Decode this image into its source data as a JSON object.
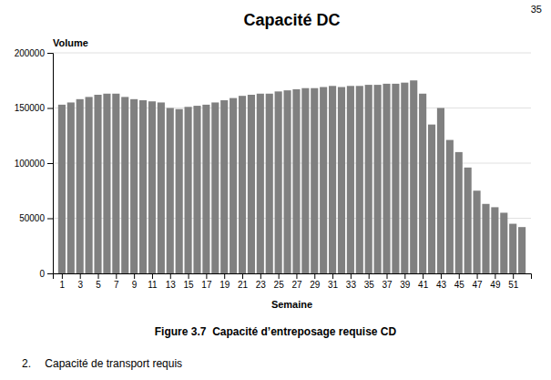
{
  "chart_data": {
    "type": "bar",
    "title": "Capacité DC",
    "ylabel": "Volume",
    "xlabel": "Semaine",
    "caption": "Figure 3.7  Capacité d’entreposage requise CD",
    "subtitle": "2.  Capacité de transport requis",
    "page_number": "35",
    "x": [
      1,
      2,
      3,
      4,
      5,
      6,
      7,
      8,
      9,
      10,
      11,
      12,
      13,
      14,
      15,
      16,
      17,
      18,
      19,
      20,
      21,
      22,
      23,
      24,
      25,
      26,
      27,
      28,
      29,
      30,
      31,
      32,
      33,
      34,
      35,
      36,
      37,
      38,
      39,
      40,
      41,
      42,
      43,
      44,
      45,
      46,
      47,
      48,
      49,
      50,
      51,
      52
    ],
    "values": [
      153000,
      155000,
      158000,
      160000,
      162000,
      163000,
      163000,
      160000,
      158000,
      157000,
      156000,
      155000,
      150000,
      149000,
      151000,
      152000,
      153000,
      155000,
      157000,
      159000,
      161000,
      162000,
      163000,
      163000,
      165000,
      166000,
      167000,
      168000,
      168000,
      169000,
      170000,
      169000,
      170000,
      170000,
      171000,
      171000,
      172000,
      172000,
      173000,
      175000,
      163000,
      135000,
      150000,
      121000,
      110000,
      96000,
      75000,
      63000,
      60000,
      55000,
      45000,
      42000
    ],
    "color": "#808080",
    "xlim": [
      0,
      53
    ],
    "xticks": [
      1,
      3,
      5,
      7,
      9,
      11,
      13,
      15,
      17,
      19,
      21,
      23,
      25,
      27,
      29,
      31,
      33,
      35,
      37,
      39,
      41,
      43,
      45,
      47,
      49,
      51
    ],
    "ylim": [
      0,
      200000
    ],
    "yticks": [
      0,
      50000,
      100000,
      150000,
      200000
    ],
    "grid": true
  }
}
